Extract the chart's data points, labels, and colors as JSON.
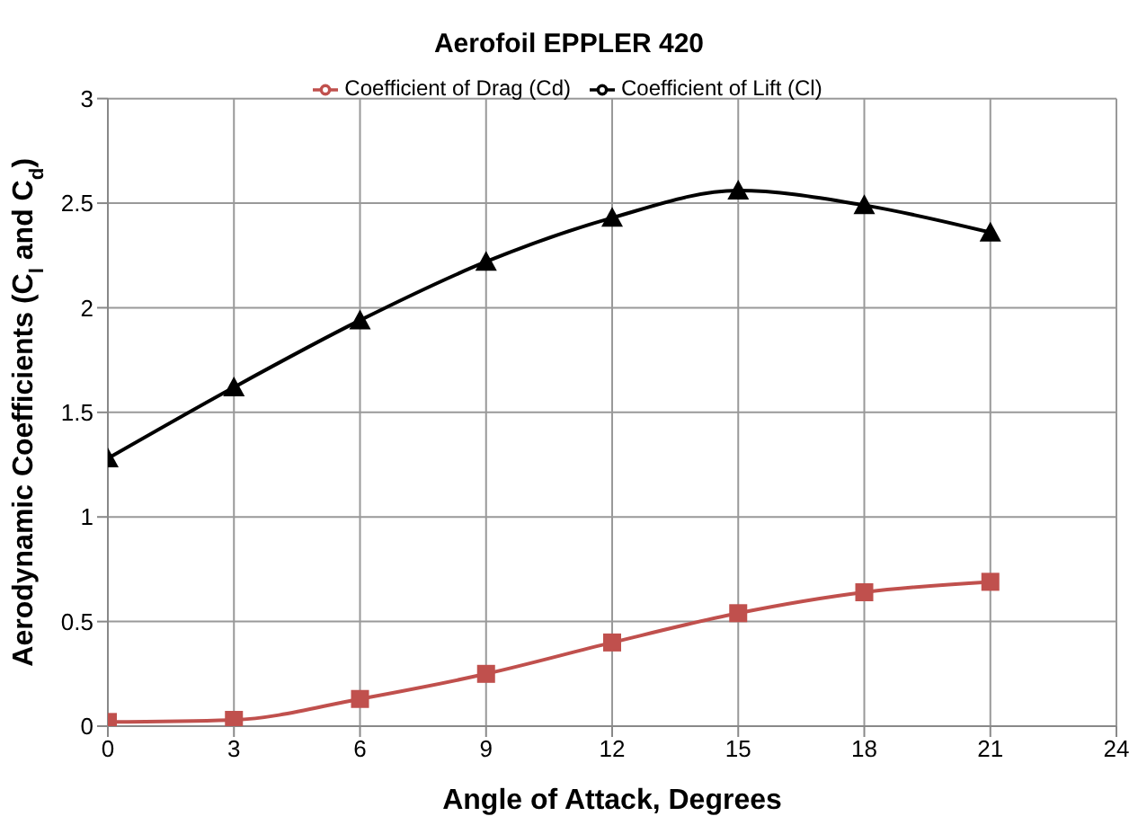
{
  "chart_data": {
    "type": "line",
    "title": "Aerofoil EPPLER 420",
    "xlabel": "Angle of Attack, Degrees",
    "ylabel": "Aerodynamic Coefficients (C$_{l}$ and C$_{d}$)",
    "x": [
      0,
      3,
      6,
      9,
      12,
      15,
      18,
      21
    ],
    "series": [
      {
        "name": "Coefficient of Lift (Cl)",
        "color": "#000000",
        "marker": "triangle",
        "values": [
          1.28,
          1.62,
          1.94,
          2.22,
          2.43,
          2.56,
          2.49,
          2.36
        ]
      },
      {
        "name": "Coefficient of Drag (Cd)",
        "color": "#c0504d",
        "marker": "square",
        "values": [
          0.02,
          0.03,
          0.13,
          0.25,
          0.4,
          0.54,
          0.64,
          0.69
        ]
      }
    ],
    "xlim": [
      0,
      24
    ],
    "xticks": [
      0,
      3,
      6,
      9,
      12,
      15,
      18,
      21,
      24
    ],
    "ylim": [
      0,
      3
    ],
    "yticks": [
      0,
      0.5,
      1,
      1.5,
      2,
      2.5,
      3
    ],
    "grid": true,
    "legend": "top"
  }
}
